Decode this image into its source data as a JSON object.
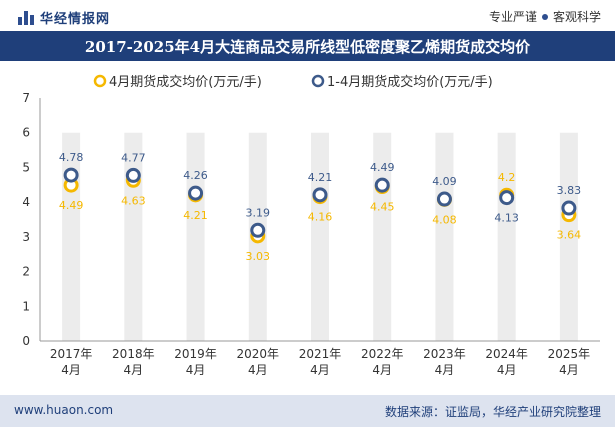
{
  "header": {
    "logo_text": "华经情报网",
    "tagline_left": "专业严谨",
    "tagline_right": "客观科学"
  },
  "chart_data": {
    "type": "line",
    "title": "2017-2025年4月大连商品交易所线型低密度聚乙烯期货成交均价",
    "categories_top": [
      "2017年",
      "2018年",
      "2019年",
      "2020年",
      "2021年",
      "2022年",
      "2023年",
      "2024年",
      "2025年"
    ],
    "categories_bottom": [
      "4月",
      "4月",
      "4月",
      "4月",
      "4月",
      "4月",
      "4月",
      "4月",
      "4月"
    ],
    "series": [
      {
        "name": "4月期货成交均价(万元/手)",
        "color": "#f5b800",
        "values": [
          4.49,
          4.63,
          4.21,
          3.03,
          4.16,
          4.45,
          4.08,
          4.2,
          3.64
        ],
        "labels": [
          "4.49",
          "4.63",
          "4.21",
          "3.03",
          "4.16",
          "4.45",
          "4.08",
          "4.2",
          "3.64"
        ]
      },
      {
        "name": "1-4月期货成交均价(万元/手)",
        "color": "#3d5a8a",
        "values": [
          4.78,
          4.77,
          4.26,
          3.19,
          4.21,
          4.49,
          4.09,
          4.13,
          3.83
        ],
        "labels": [
          "4.78",
          "4.77",
          "4.26",
          "3.19",
          "4.21",
          "4.49",
          "4.09",
          "4.13",
          "3.83"
        ]
      }
    ],
    "ylim": [
      0,
      7
    ],
    "yticks": [
      "0",
      "1",
      "2",
      "3",
      "4",
      "5",
      "6",
      "7"
    ],
    "grid": false,
    "legend_position": "top"
  },
  "footer": {
    "website": "www.huaon.com",
    "source": "数据来源：证监局，华经产业研究院整理"
  }
}
